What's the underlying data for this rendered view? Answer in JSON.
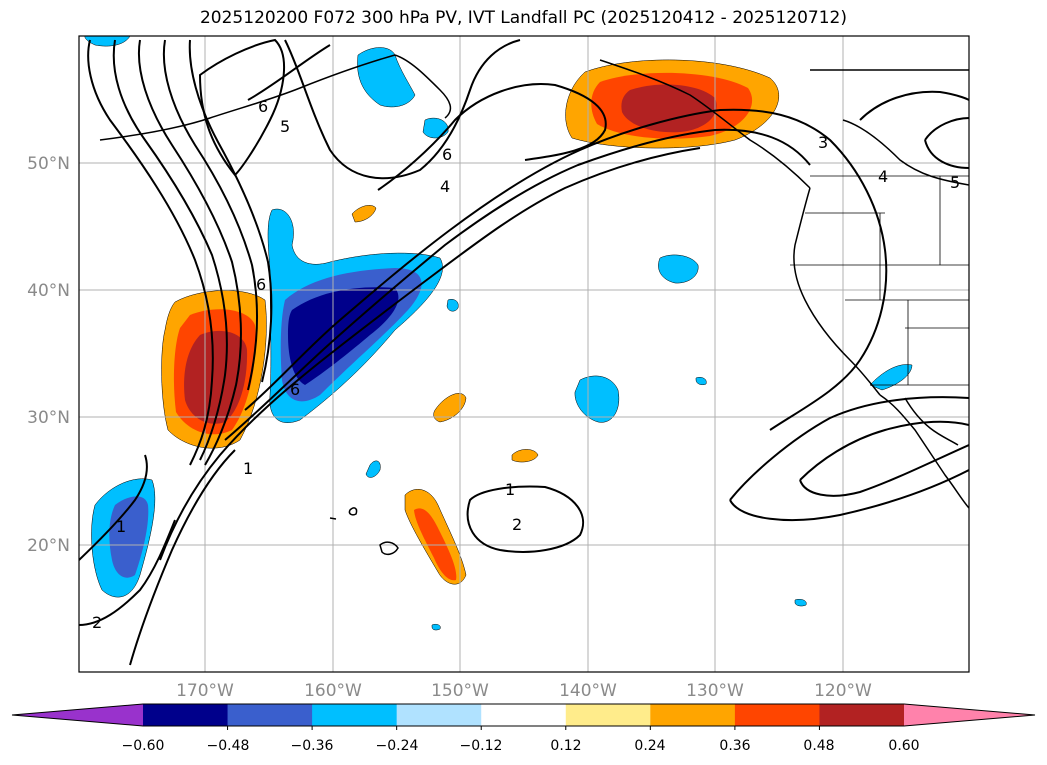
{
  "title": "2025120200 F072 300 hPa PV, IVT Landfall PC (2025120412 - 2025120712)",
  "map": {
    "lat_labels": [
      "50°N",
      "40°N",
      "30°N",
      "20°N"
    ],
    "lon_labels": [
      "170°W",
      "160°W",
      "150°W",
      "140°W",
      "130°W",
      "120°W"
    ],
    "pv_contour_labels": [
      "6",
      "5",
      "6",
      "4",
      "6",
      "3",
      "4",
      "5",
      "1",
      "1",
      "2",
      "1",
      "2",
      "6"
    ]
  },
  "colorbar": {
    "ticks": [
      "−0.60",
      "−0.48",
      "−0.36",
      "−0.24",
      "−0.12",
      "0.12",
      "0.24",
      "0.36",
      "0.48",
      "0.60"
    ],
    "colors": [
      "#9932cc",
      "#00008b",
      "#3a5fcd",
      "#00bfff",
      "#b0e2ff",
      "#ffffff",
      "#ffec8b",
      "#ffa500",
      "#ff4500",
      "#b22222",
      "#ff82ab"
    ]
  }
}
